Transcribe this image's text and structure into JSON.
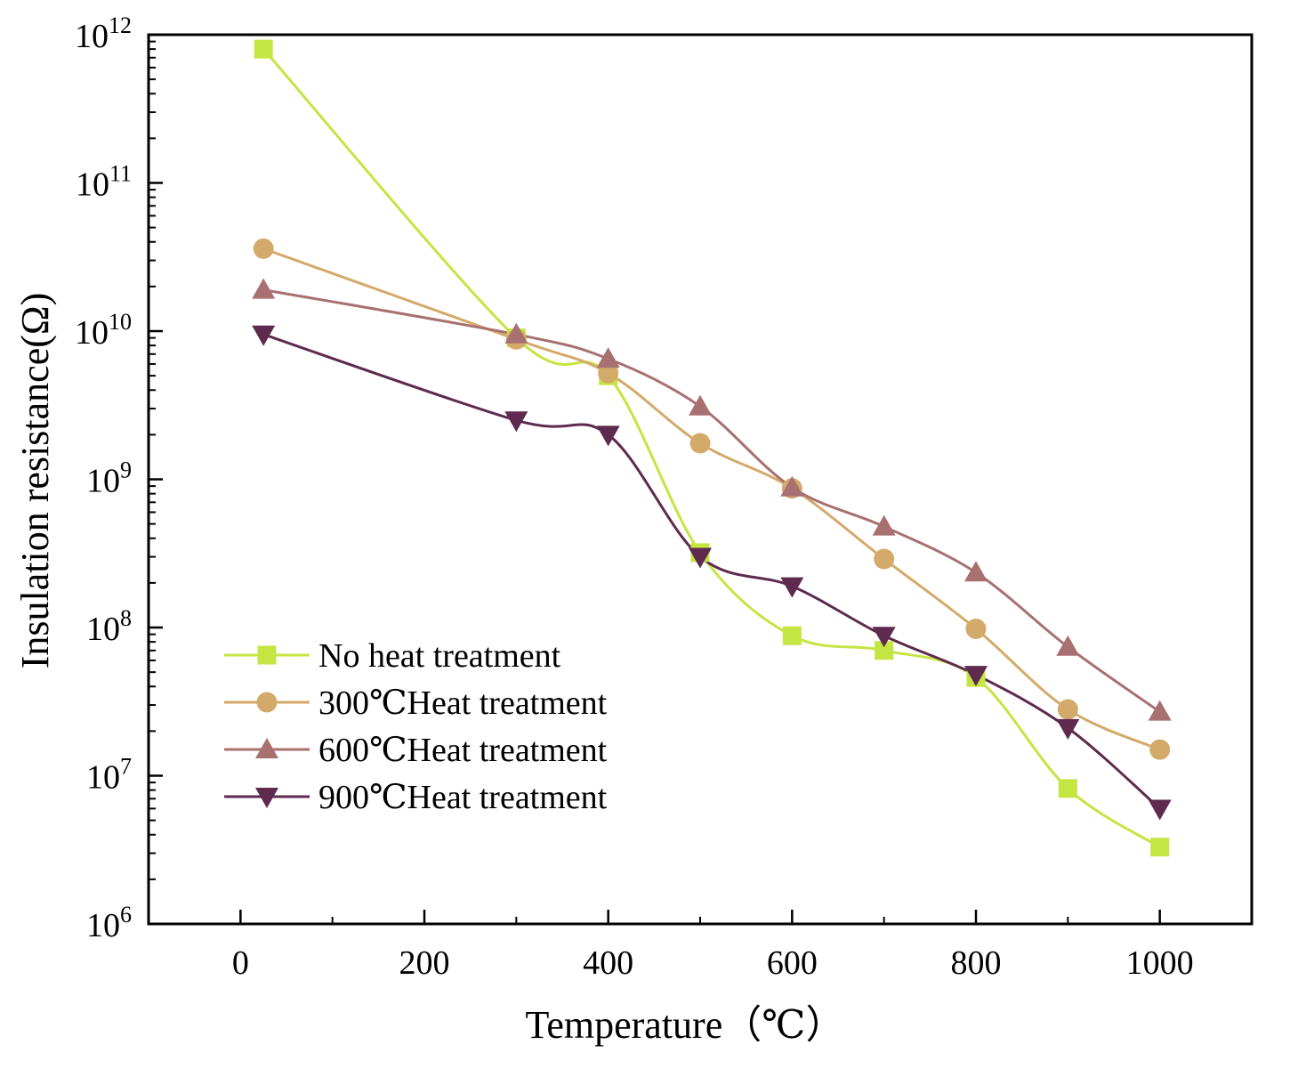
{
  "chart_data": {
    "type": "line",
    "title": "",
    "xlabel": "Temperature（℃）",
    "ylabel": "Insulation resistance(Ω)",
    "x_scale": "linear",
    "y_scale": "log",
    "xlim": [
      -100,
      1100
    ],
    "ylim": [
      1000000,
      1000000000000
    ],
    "x_ticks": [
      0,
      200,
      400,
      600,
      800,
      1000
    ],
    "x_tick_labels": [
      "0",
      "200",
      "400",
      "600",
      "800",
      "1000"
    ],
    "y_ticks": [
      {
        "value": 1000000,
        "base": "10",
        "exp": "6"
      },
      {
        "value": 10000000,
        "base": "10",
        "exp": "7"
      },
      {
        "value": 100000000,
        "base": "10",
        "exp": "8"
      },
      {
        "value": 1000000000,
        "base": "10",
        "exp": "9"
      },
      {
        "value": 10000000000,
        "base": "10",
        "exp": "10"
      },
      {
        "value": 100000000000,
        "base": "10",
        "exp": "11"
      },
      {
        "value": 1000000000000,
        "base": "10",
        "exp": "12"
      }
    ],
    "legend_position": "bottom-left",
    "series": [
      {
        "name": "No heat treatment",
        "marker": "square",
        "color": "#c5e542",
        "x": [
          25,
          300,
          400,
          500,
          600,
          700,
          800,
          900,
          1000
        ],
        "values": [
          800000000000,
          9000000000,
          5000000000,
          320000000,
          88000000,
          70000000,
          46000000,
          8200000,
          3300000
        ]
      },
      {
        "name": "300℃Heat treatment",
        "marker": "circle",
        "color": "#d4aa6a",
        "x": [
          25,
          300,
          400,
          500,
          600,
          700,
          800,
          900,
          1000
        ],
        "values": [
          36000000000,
          8800000000,
          5200000000,
          1750000000,
          870000000,
          290000000,
          98000000,
          28000000,
          15000000
        ]
      },
      {
        "name": "600℃Heat treatment",
        "marker": "triangle-up",
        "color": "#a87070",
        "x": [
          25,
          300,
          400,
          500,
          600,
          700,
          800,
          900,
          1000
        ],
        "values": [
          19000000000,
          9500000000,
          6500000000,
          3100000000,
          880000000,
          480000000,
          235000000,
          74000000,
          27000000
        ]
      },
      {
        "name": "900℃Heat treatment",
        "marker": "triangle-down",
        "color": "#5e2a4e",
        "x": [
          25,
          300,
          400,
          500,
          600,
          700,
          800,
          900,
          1000
        ],
        "values": [
          9500000000,
          2500000000,
          2000000000,
          300000000,
          190000000,
          88000000,
          48000000,
          21000000,
          6000000
        ]
      }
    ]
  }
}
